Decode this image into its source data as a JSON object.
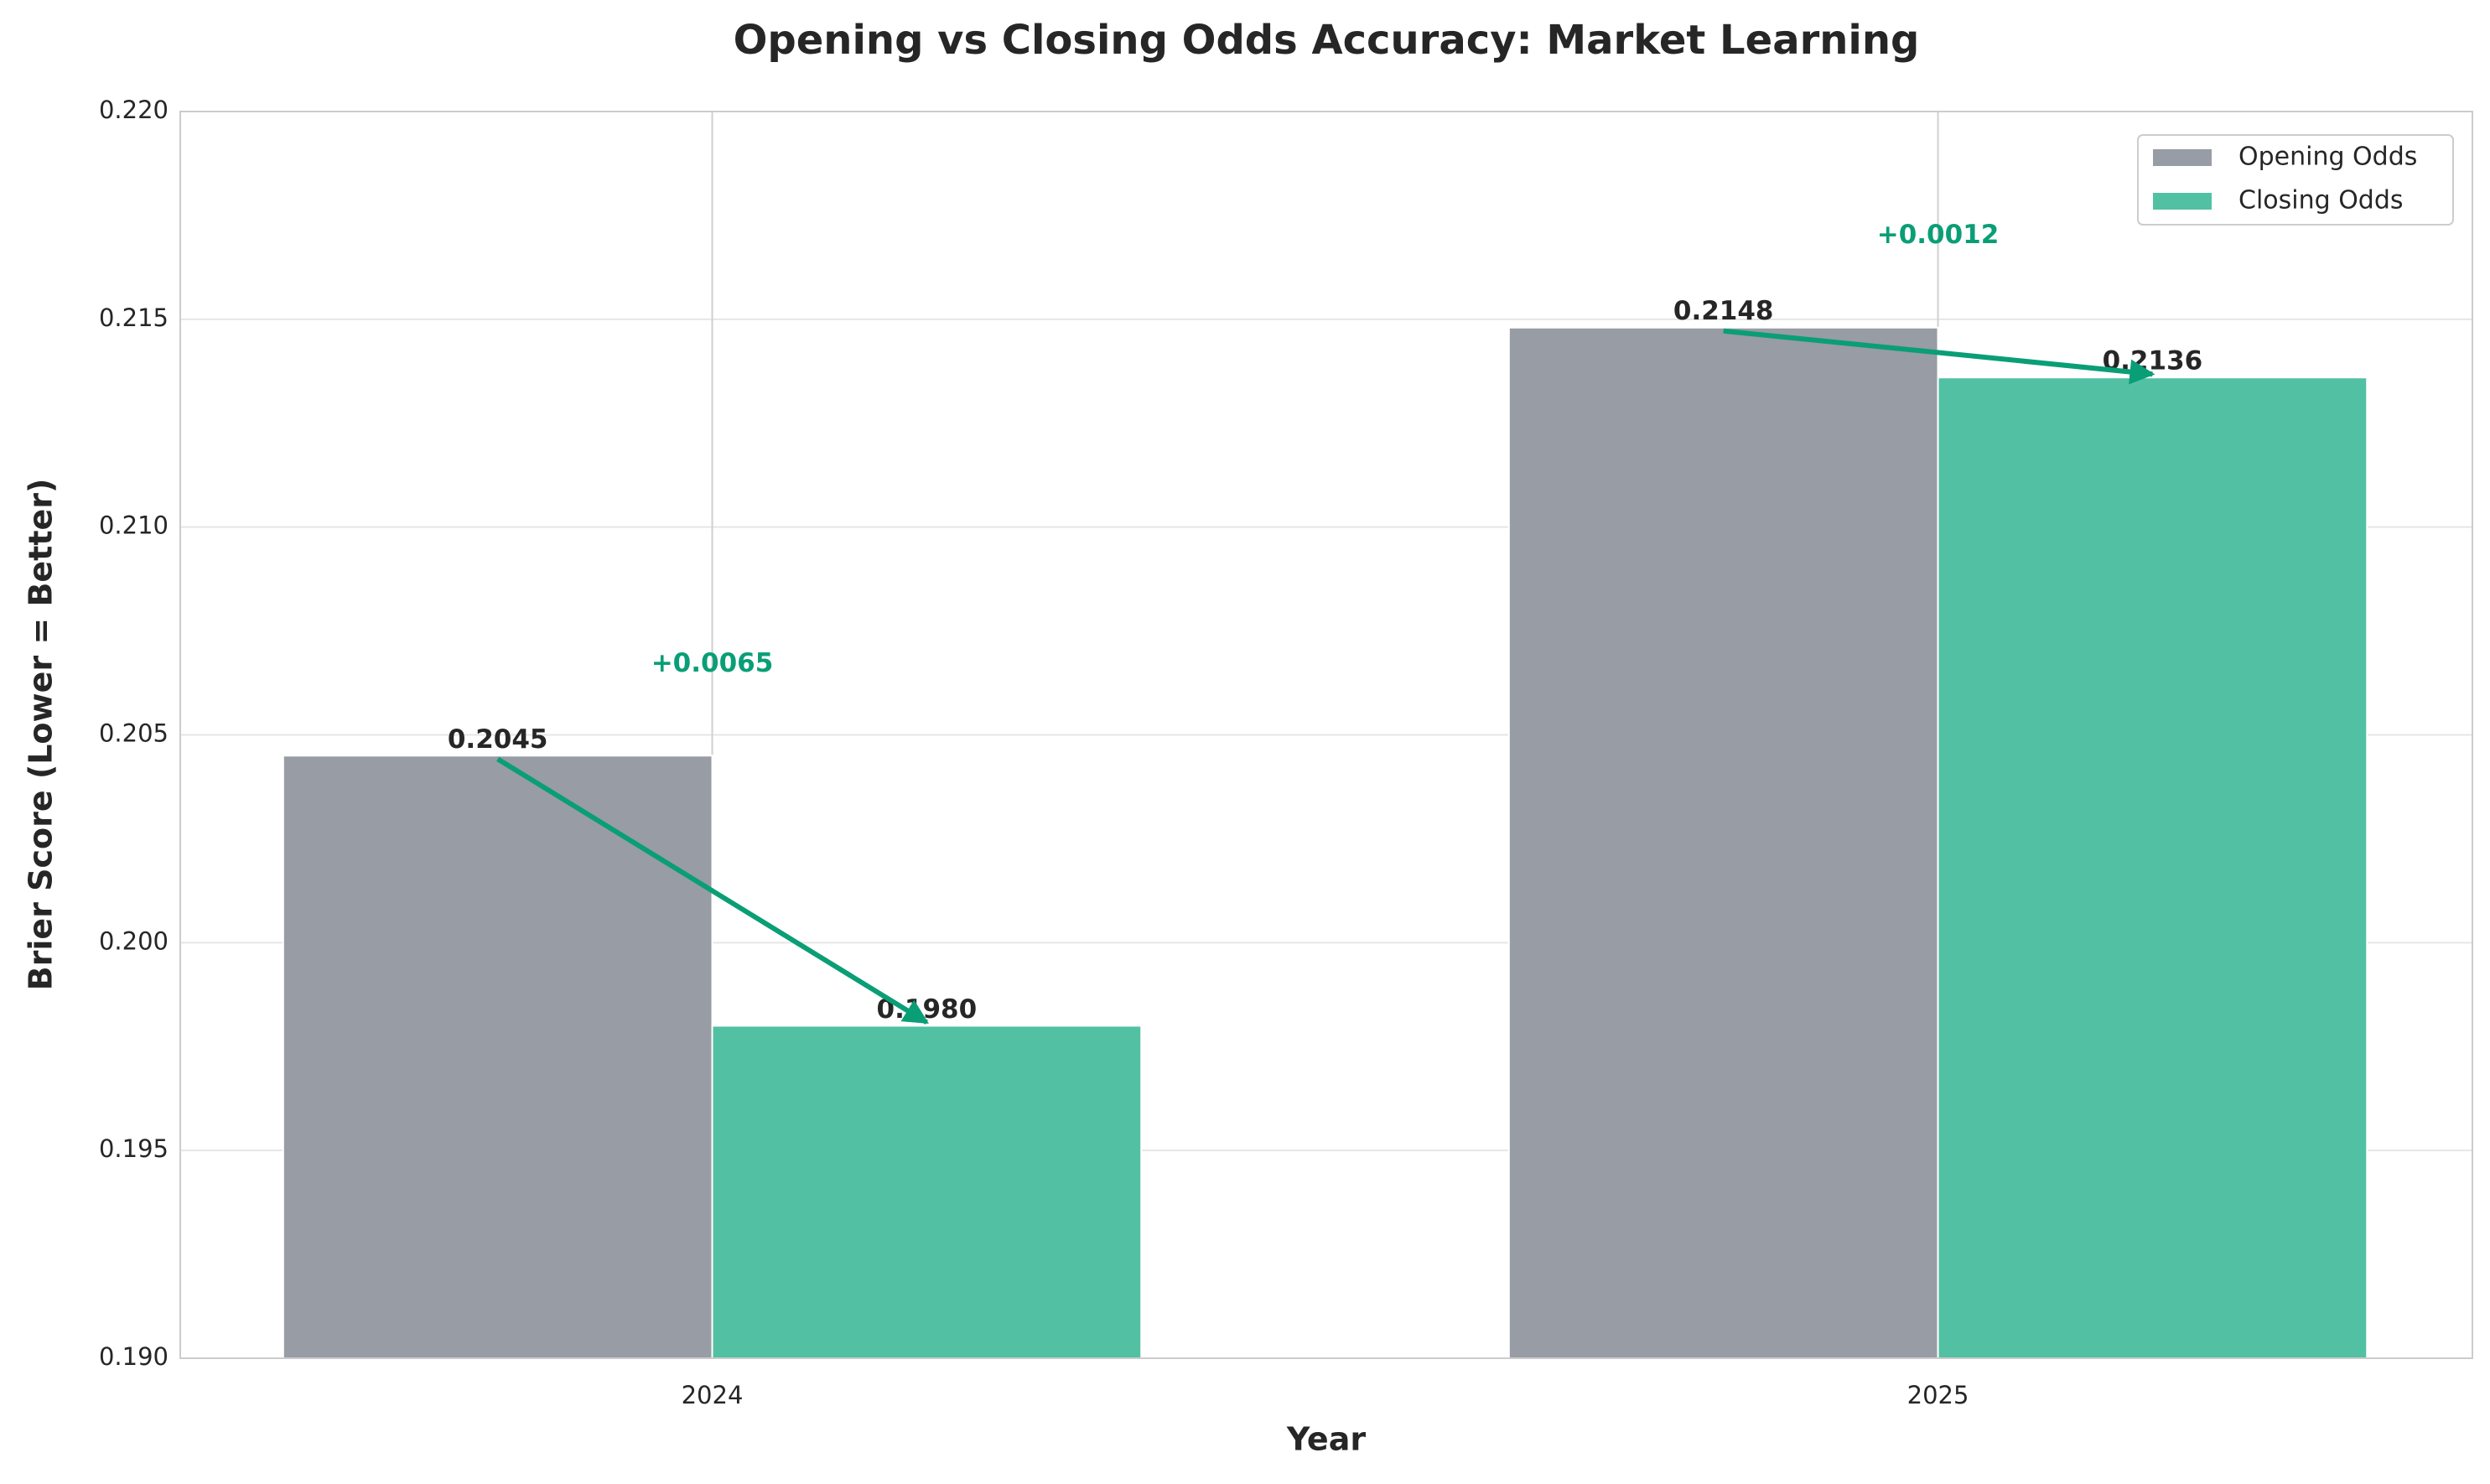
{
  "chart_data": {
    "type": "bar",
    "title": "Opening vs Closing Odds Accuracy: Market Learning",
    "xlabel": "Year",
    "ylabel": "Brier Score (Lower = Better)",
    "categories": [
      "2024",
      "2025"
    ],
    "series": [
      {
        "name": "Opening Odds",
        "color": "#989ca4",
        "values": [
          0.2045,
          0.2148
        ],
        "value_labels": [
          "0.2045",
          "0.2148"
        ]
      },
      {
        "name": "Closing Odds",
        "color": "#52c1a3",
        "values": [
          0.198,
          0.2136
        ],
        "value_labels": [
          "0.1980",
          "0.2136"
        ]
      }
    ],
    "improvements": {
      "color": "#0a9e76",
      "values": [
        0.0065,
        0.0012
      ],
      "value_labels": [
        "+0.0065",
        "+0.0012"
      ]
    },
    "ylim": [
      0.19,
      0.22
    ],
    "yticks": [
      {
        "value": 0.19,
        "label": "0.190"
      },
      0.195,
      {
        "value": 0.2,
        "label": "0.200"
      },
      0.205,
      {
        "value": 0.21,
        "label": "0.210"
      },
      0.215,
      {
        "value": 0.22,
        "label": "0.220"
      }
    ],
    "grid": true,
    "legend": "upper right"
  }
}
